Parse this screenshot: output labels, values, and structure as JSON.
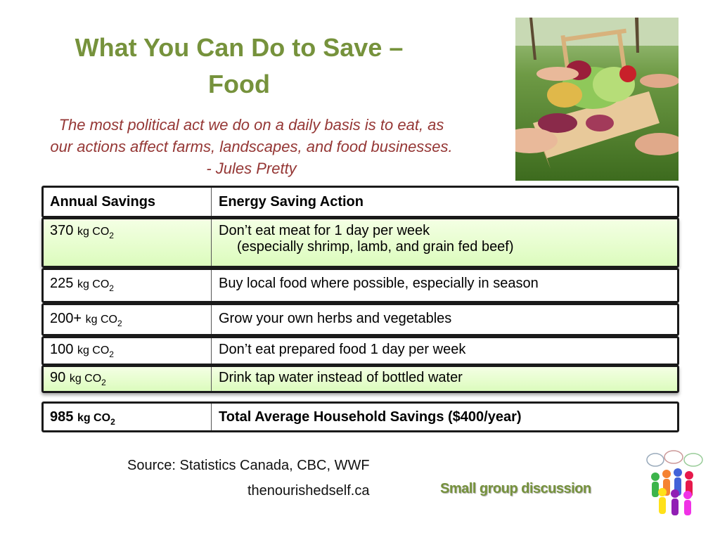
{
  "slide": {
    "title": "What You Can Do to Save – Food",
    "quote": "The most political act we do on a daily basis is to eat, as our actions affect farms, landscapes, and food businesses. - Jules Pretty",
    "source": "Source: Statistics Canada, CBC, WWF",
    "website": "thenourishedself.ca",
    "discussion_label": "Small group discussion",
    "photo_description": "hands holding wooden basket of vegetables",
    "discussion_icon": "people-speech-bubbles-icon"
  },
  "table": {
    "headers": {
      "savings": "Annual Savings",
      "action": "Energy Saving Action"
    },
    "unit": "kg CO",
    "unit_sub": "2",
    "rows": [
      {
        "value": "370",
        "action": "Don’t eat meat for 1 day per week",
        "detail": "(especially shrimp, lamb, and grain fed beef)"
      },
      {
        "value": "225",
        "action": "Buy local food where possible, especially in season"
      },
      {
        "value": "200+",
        "action": "Grow your own herbs and vegetables"
      },
      {
        "value": "100",
        "action": "Don’t eat prepared food 1 day per week"
      },
      {
        "value": "90",
        "action": "Drink tap water instead of bottled water"
      }
    ],
    "total": {
      "value": "985",
      "action": "Total Average Household Savings ($400/year)"
    }
  },
  "colors": {
    "title": "#76923c",
    "quote": "#953735",
    "highlight_row": "#dcfcbd",
    "border": "#1a1a1a"
  }
}
